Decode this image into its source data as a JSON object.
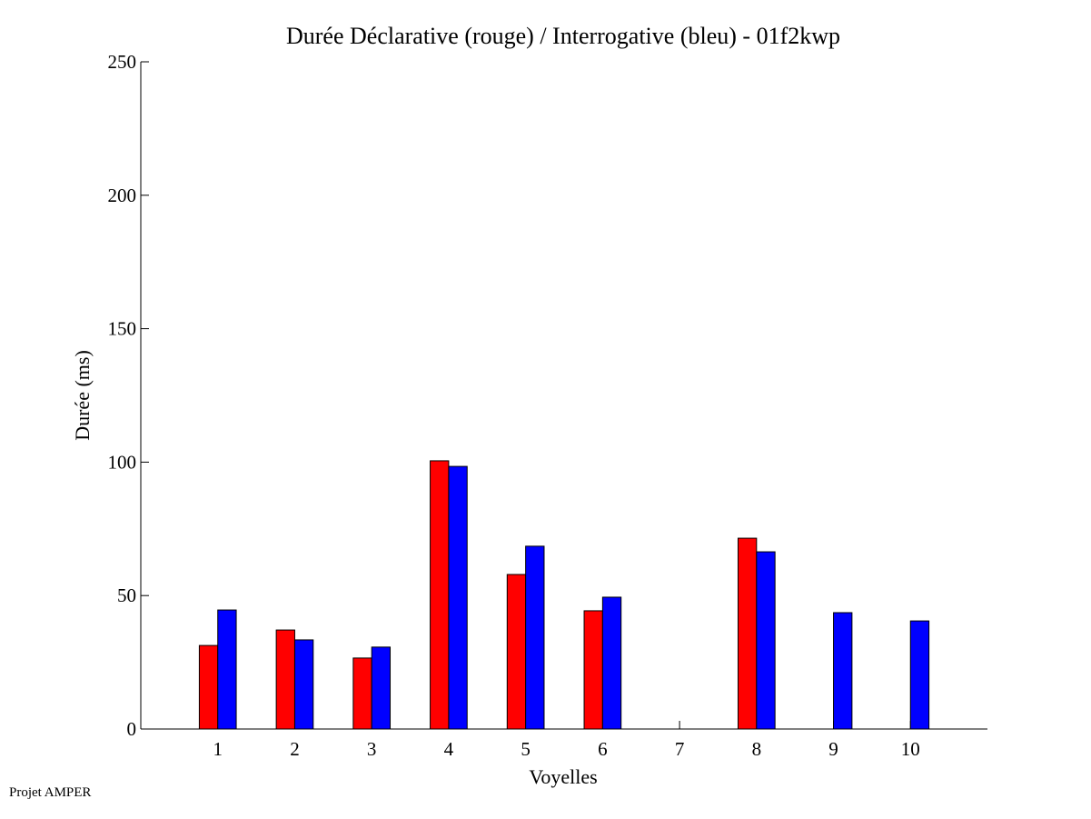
{
  "chart_data": {
    "type": "bar",
    "title": "Durée Déclarative (rouge) / Interrogative (bleu) - 01f2kwp",
    "xlabel": "Voyelles",
    "ylabel": "Durée (ms)",
    "categories": [
      "1",
      "2",
      "3",
      "4",
      "5",
      "6",
      "7",
      "8",
      "9",
      "10"
    ],
    "xlim": [
      0,
      11
    ],
    "ylim": [
      0,
      250
    ],
    "yticks": [
      0,
      50,
      100,
      150,
      200,
      250
    ],
    "grid": false,
    "series": [
      {
        "name": "Déclarative (rouge)",
        "color": "#ff0000",
        "values": [
          31.3,
          37.1,
          26.6,
          100.5,
          57.9,
          44.3,
          null,
          71.5,
          null,
          null
        ]
      },
      {
        "name": "Interrogative (bleu)",
        "color": "#0000ff",
        "values": [
          44.6,
          33.4,
          30.7,
          98.4,
          68.5,
          49.4,
          null,
          66.4,
          43.6,
          40.5
        ]
      }
    ]
  },
  "footer": "Projet AMPER"
}
